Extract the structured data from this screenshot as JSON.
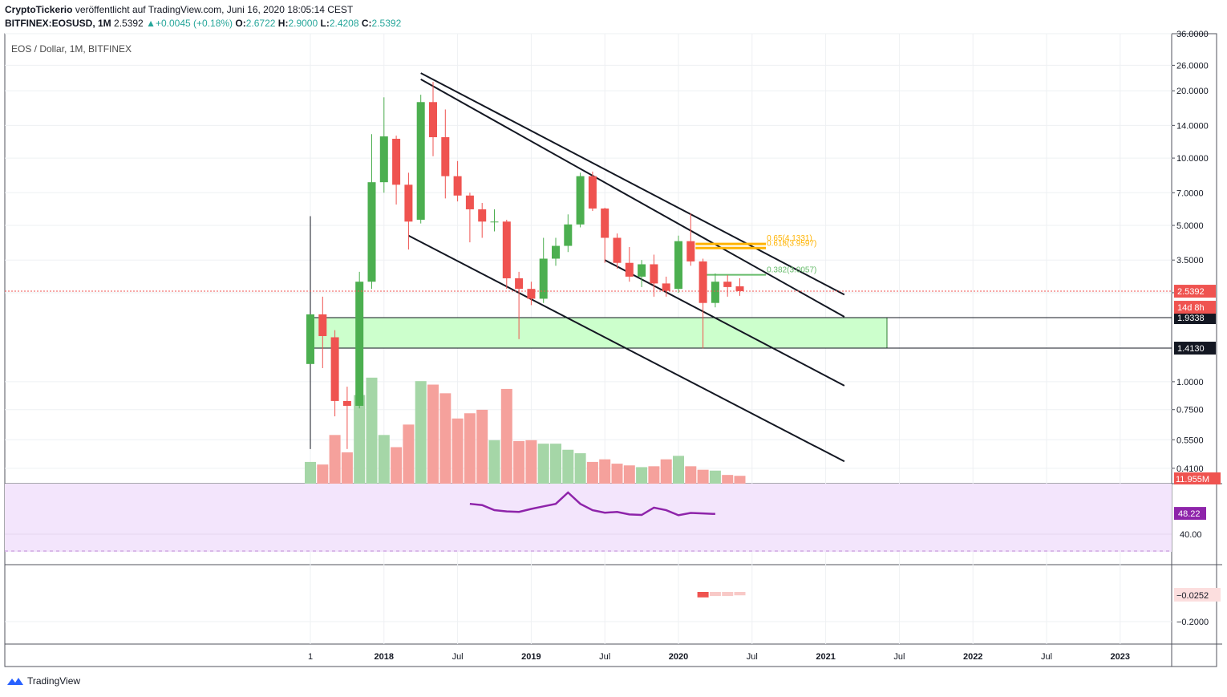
{
  "header": {
    "author": "CryptoTickerio",
    "published_text": "veröffentlicht auf TradingView.com, Juni 16, 2020 18:05:14 CEST",
    "symbol": "BITFINEX:EOSUSD, 1M",
    "last": "2.5392",
    "change_arrow": "▲",
    "change": "+0.0045 (+0.18%)",
    "o_label": "O:",
    "o_value": "2.6722",
    "h_label": "H:",
    "h_value": "2.9000",
    "l_label": "L:",
    "l_value": "2.4208",
    "c_label": "C:",
    "c_value": "2.5392"
  },
  "legend": "EOS / Dollar, 1M, BITFINEX",
  "branding": "TradingView",
  "colors": {
    "up": "#4caf50",
    "down": "#ef5350",
    "up_volume": "#a5d6a7",
    "down_volume": "#f5a19c",
    "rsi_line": "#8e24aa",
    "rsi_band": "#f3e5fc",
    "support_zone": "#ccffcc",
    "fib": "#ffb300",
    "fib_green": "#66bb6a"
  },
  "chart_data": {
    "type": "candlestick",
    "scale": "log",
    "ylim": [
      0.35,
      36
    ],
    "y_ticks": [
      "36.0000",
      "26.0000",
      "20.0000",
      "14.0000",
      "10.0000",
      "7.0000",
      "5.0000",
      "3.5000",
      "2.5000",
      "1.0000",
      "0.7500",
      "0.5500",
      "0.4100"
    ],
    "x_ticks": [
      "1",
      "2018",
      "Jul",
      "2019",
      "Jul",
      "2020",
      "Jul",
      "2021",
      "Jul",
      "2022",
      "Jul",
      "2023"
    ],
    "candles": [
      {
        "t": "2017-07",
        "o": 1.2,
        "h": 5.5,
        "l": 0.5,
        "c": 2.0
      },
      {
        "t": "2017-08",
        "o": 2.0,
        "h": 2.4,
        "l": 1.15,
        "c": 1.6
      },
      {
        "t": "2017-09",
        "o": 1.58,
        "h": 1.7,
        "l": 0.7,
        "c": 0.82
      },
      {
        "t": "2017-10",
        "o": 0.82,
        "h": 0.95,
        "l": 0.5,
        "c": 0.78
      },
      {
        "t": "2017-11",
        "o": 0.78,
        "h": 3.1,
        "l": 0.76,
        "c": 2.8
      },
      {
        "t": "2017-12",
        "o": 2.8,
        "h": 12.8,
        "l": 2.6,
        "c": 7.8
      },
      {
        "t": "2018-01",
        "o": 7.8,
        "h": 18.7,
        "l": 7.0,
        "c": 12.5
      },
      {
        "t": "2018-02",
        "o": 12.2,
        "h": 12.6,
        "l": 6.2,
        "c": 7.6
      },
      {
        "t": "2018-03",
        "o": 7.6,
        "h": 8.6,
        "l": 3.9,
        "c": 5.2
      },
      {
        "t": "2018-04",
        "o": 5.3,
        "h": 19.2,
        "l": 5.1,
        "c": 17.8
      },
      {
        "t": "2018-05",
        "o": 17.8,
        "h": 21.9,
        "l": 10.2,
        "c": 12.4
      },
      {
        "t": "2018-06",
        "o": 12.4,
        "h": 16.5,
        "l": 6.6,
        "c": 8.3
      },
      {
        "t": "2018-07",
        "o": 8.3,
        "h": 9.7,
        "l": 6.4,
        "c": 6.8
      },
      {
        "t": "2018-08",
        "o": 6.8,
        "h": 7.0,
        "l": 4.2,
        "c": 5.9
      },
      {
        "t": "2018-09",
        "o": 5.9,
        "h": 6.3,
        "l": 4.4,
        "c": 5.2
      },
      {
        "t": "2018-10",
        "o": 5.2,
        "h": 5.9,
        "l": 4.7,
        "c": 5.2
      },
      {
        "t": "2018-11",
        "o": 5.2,
        "h": 5.3,
        "l": 2.6,
        "c": 2.9
      },
      {
        "t": "2018-12",
        "o": 2.9,
        "h": 3.1,
        "l": 1.55,
        "c": 2.6
      },
      {
        "t": "2019-01",
        "o": 2.6,
        "h": 2.8,
        "l": 2.2,
        "c": 2.35
      },
      {
        "t": "2019-02",
        "o": 2.35,
        "h": 4.4,
        "l": 2.25,
        "c": 3.55
      },
      {
        "t": "2019-03",
        "o": 3.55,
        "h": 4.4,
        "l": 3.3,
        "c": 4.05
      },
      {
        "t": "2019-04",
        "o": 4.05,
        "h": 5.6,
        "l": 3.8,
        "c": 5.05
      },
      {
        "t": "2019-05",
        "o": 5.05,
        "h": 8.6,
        "l": 4.9,
        "c": 8.3
      },
      {
        "t": "2019-06",
        "o": 8.3,
        "h": 8.7,
        "l": 5.8,
        "c": 5.95
      },
      {
        "t": "2019-07",
        "o": 5.95,
        "h": 6.0,
        "l": 3.4,
        "c": 4.4
      },
      {
        "t": "2019-08",
        "o": 4.4,
        "h": 4.6,
        "l": 3.2,
        "c": 3.4
      },
      {
        "t": "2019-09",
        "o": 3.4,
        "h": 4.0,
        "l": 2.8,
        "c": 2.95
      },
      {
        "t": "2019-10",
        "o": 2.95,
        "h": 3.5,
        "l": 2.65,
        "c": 3.35
      },
      {
        "t": "2019-11",
        "o": 3.35,
        "h": 3.7,
        "l": 2.4,
        "c": 2.75
      },
      {
        "t": "2019-12",
        "o": 2.75,
        "h": 2.95,
        "l": 2.4,
        "c": 2.55
      },
      {
        "t": "2020-01",
        "o": 2.6,
        "h": 4.5,
        "l": 2.5,
        "c": 4.25
      },
      {
        "t": "2020-02",
        "o": 4.25,
        "h": 5.65,
        "l": 3.3,
        "c": 3.45
      },
      {
        "t": "2020-03",
        "o": 3.45,
        "h": 3.55,
        "l": 1.41,
        "c": 2.25
      },
      {
        "t": "2020-04",
        "o": 2.25,
        "h": 3.05,
        "l": 2.15,
        "c": 2.8
      },
      {
        "t": "2020-05",
        "o": 2.8,
        "h": 3.0,
        "l": 2.4,
        "c": 2.65
      },
      {
        "t": "2020-06",
        "o": 2.67,
        "h": 2.9,
        "l": 2.42,
        "c": 2.54
      }
    ],
    "volume_scale_max": 12,
    "volume": [
      2.5,
      2.2,
      5.6,
      3.6,
      10.2,
      12.2,
      5.6,
      4.2,
      6.8,
      11.8,
      11.4,
      10.4,
      7.5,
      8.1,
      8.5,
      5.0,
      10.9,
      4.9,
      5.0,
      4.6,
      4.6,
      3.9,
      3.5,
      2.5,
      2.8,
      2.3,
      2.1,
      1.9,
      2.0,
      2.8,
      3.2,
      2.0,
      1.6,
      1.5,
      1.0,
      0.9
    ],
    "volume_label": "11.955M",
    "rsi": {
      "values": [
        52.0,
        51.5,
        49.5,
        49.0,
        48.8,
        50.0,
        51.0,
        52.0,
        56.5,
        52.0,
        49.5,
        48.5,
        48.8,
        47.8,
        47.6,
        50.5,
        49.5,
        47.5,
        48.4,
        48.2,
        48.0
      ],
      "start": "2018-08",
      "last_label": "48.22",
      "tick": "40.00",
      "ylim": [
        33,
        60
      ]
    },
    "macd": {
      "last_label": "−0.0252",
      "tick": "−0.2000",
      "histogram": [
        -0.04,
        -0.03,
        -0.03,
        -0.025
      ]
    },
    "levels": [
      {
        "label": "1.9338",
        "value": 1.9338
      },
      {
        "label": "1.4130",
        "value": 1.413
      }
    ],
    "current_price_label": "2.5392",
    "countdown_label": "14d 8h",
    "fib": [
      {
        "label": "0.65(4.1331)",
        "value": 4.1331
      },
      {
        "label": "0.618(3.9597)",
        "value": 3.9597
      },
      {
        "label": "0.382(3.0057)",
        "value": 3.0057
      }
    ],
    "trendlines": [
      {
        "from": {
          "t": "2018-04",
          "v": 24.0
        },
        "to": {
          "t": "2021-02",
          "v": 2.45
        }
      },
      {
        "from": {
          "t": "2018-04",
          "v": 22.5
        },
        "to": {
          "t": "2021-02",
          "v": 1.95
        }
      },
      {
        "from": {
          "t": "2018-03",
          "v": 4.5
        },
        "to": {
          "t": "2021-02",
          "v": 0.44
        }
      },
      {
        "from": {
          "t": "2019-07",
          "v": 3.5
        },
        "to": {
          "t": "2021-02",
          "v": 0.96
        }
      }
    ]
  }
}
